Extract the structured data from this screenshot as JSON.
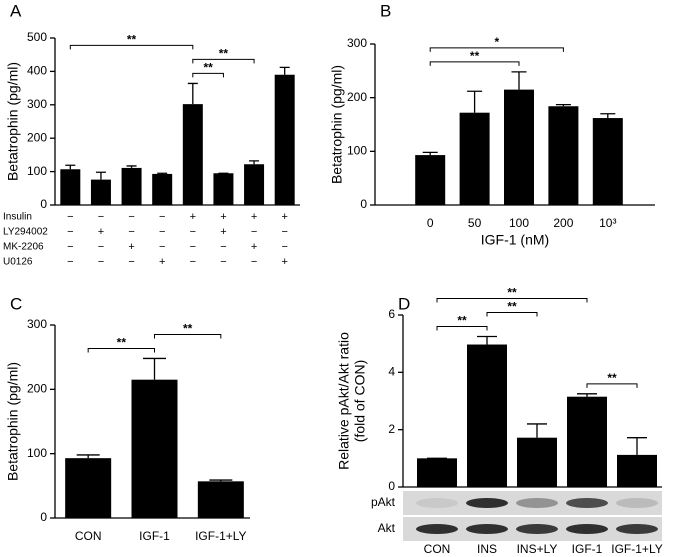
{
  "chart_data": [
    {
      "type": "bar",
      "panel": "A",
      "ylabel": "Betatrophin (pg/ml)",
      "values": [
        107,
        76,
        111,
        93,
        302,
        95,
        122,
        390
      ],
      "errors": [
        12,
        22,
        6,
        2,
        62,
        0,
        10,
        22
      ],
      "color": "#000000",
      "ylim": [
        0,
        500
      ],
      "yticks": [
        0,
        100,
        200,
        300,
        400,
        500
      ],
      "treatments": [
        {
          "name": "Insulin",
          "signs": [
            "−",
            "−",
            "−",
            "−",
            "+",
            "+",
            "+",
            "+"
          ]
        },
        {
          "name": "LY294002",
          "signs": [
            "−",
            "+",
            "−",
            "−",
            "−",
            "+",
            "−",
            "−"
          ]
        },
        {
          "name": "MK-2206",
          "signs": [
            "−",
            "−",
            "+",
            "−",
            "−",
            "−",
            "+",
            "−"
          ]
        },
        {
          "name": "U0126",
          "signs": [
            "−",
            "−",
            "−",
            "+",
            "−",
            "−",
            "−",
            "+"
          ]
        }
      ],
      "annotations": [
        {
          "from": 0,
          "to": 4,
          "text": "**"
        },
        {
          "from": 4,
          "to": 6,
          "text": "**"
        },
        {
          "from": 4,
          "to": 5,
          "text": "**"
        }
      ]
    },
    {
      "type": "bar",
      "panel": "B",
      "ylabel": "Betatrophin (pg/ml)",
      "xlabel": "IGF-1 (nM)",
      "categories": [
        "0",
        "50",
        "100",
        "200",
        "10³"
      ],
      "values": [
        93,
        172,
        215,
        184,
        162
      ],
      "errors": [
        5,
        40,
        33,
        3,
        8
      ],
      "color": "#000000",
      "ylim": [
        0,
        300
      ],
      "yticks": [
        0,
        100,
        200,
        300
      ],
      "annotations": [
        {
          "from": 0,
          "to": 2,
          "text": "**"
        },
        {
          "from": 0,
          "to": 3,
          "text": "*"
        }
      ]
    },
    {
      "type": "bar",
      "panel": "C",
      "ylabel": "Betatrophin (pg/ml)",
      "categories": [
        "CON",
        "IGF-1",
        "IGF-1+LY"
      ],
      "values": [
        93,
        215,
        57
      ],
      "errors": [
        5,
        33,
        2
      ],
      "color": "#000000",
      "ylim": [
        0,
        300
      ],
      "yticks": [
        0,
        100,
        200,
        300
      ],
      "annotations": [
        {
          "from": 0,
          "to": 1,
          "text": "**"
        },
        {
          "from": 1,
          "to": 2,
          "text": "**"
        }
      ]
    },
    {
      "type": "bar",
      "panel": "D",
      "ylabel": [
        "Relative pAkt/Akt ratio",
        "(fold of CON)"
      ],
      "categories": [
        "CON",
        "INS",
        "INS+LY",
        "IGF-1",
        "IGF-1+LY"
      ],
      "values": [
        1,
        4.97,
        1.72,
        3.15,
        1.12
      ],
      "errors": [
        0,
        0.28,
        0.48,
        0.1,
        0.6
      ],
      "color": "#000000",
      "ylim": [
        0,
        6
      ],
      "yticks": [
        0,
        2,
        4,
        6
      ],
      "blot_rows": [
        "pAkt",
        "Akt"
      ],
      "annotations": [
        {
          "from": 0,
          "to": 1,
          "text": "**"
        },
        {
          "from": 1,
          "to": 2,
          "text": "**"
        },
        {
          "from": 0,
          "to": 3,
          "text": "**"
        },
        {
          "from": 3,
          "to": 4,
          "text": "**"
        }
      ]
    }
  ]
}
